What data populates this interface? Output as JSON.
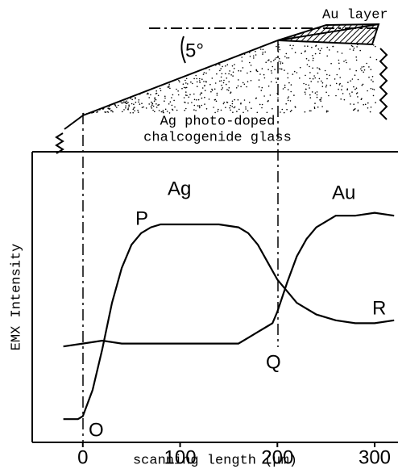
{
  "chart_data": {
    "type": "line",
    "xlabel": "scanning length (μm)",
    "ylabel": "EMX Intensity",
    "xlim": [
      -52,
      324
    ],
    "xticks": [
      0,
      100,
      200,
      300
    ],
    "ylim": [
      0,
      100
    ],
    "series": [
      {
        "name": "Ag",
        "color": "#000000",
        "x": [
          -20,
          -5,
          0,
          10,
          20,
          30,
          40,
          50,
          60,
          70,
          80,
          100,
          120,
          140,
          160,
          170,
          180,
          190,
          200,
          210,
          220,
          240,
          260,
          280,
          300,
          320
        ],
        "values": [
          8,
          8,
          9,
          18,
          32,
          48,
          60,
          68,
          72,
          74,
          75,
          75,
          75,
          75,
          74,
          72,
          68,
          62,
          56,
          52,
          48,
          44,
          42,
          41,
          41,
          42
        ]
      },
      {
        "name": "Au",
        "color": "#000000",
        "x": [
          -20,
          0,
          20,
          40,
          60,
          80,
          100,
          120,
          140,
          160,
          170,
          180,
          190,
          195,
          200,
          210,
          220,
          230,
          240,
          250,
          260,
          280,
          300,
          320
        ],
        "values": [
          33,
          34,
          35,
          34,
          34,
          34,
          34,
          34,
          34,
          34,
          36,
          38,
          40,
          41,
          45,
          55,
          64,
          70,
          74,
          76,
          78,
          78,
          79,
          78
        ]
      }
    ],
    "annotations": [
      "P",
      "Q",
      "R",
      "O",
      "Au layer",
      "5°",
      "Ag photo-doped",
      "chalcogenide glass"
    ]
  }
}
